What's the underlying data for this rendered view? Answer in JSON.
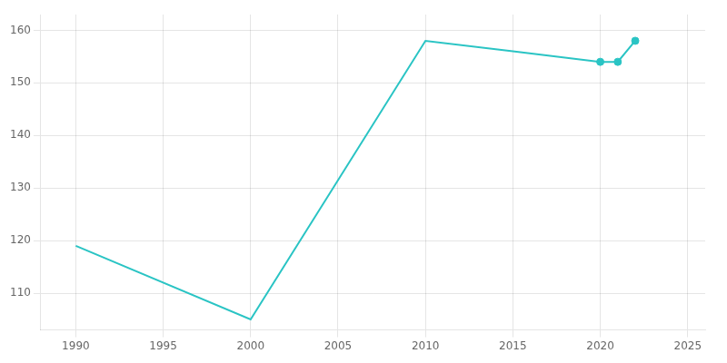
{
  "chart_data": {
    "type": "line",
    "x": [
      1990,
      2000,
      2010,
      2015,
      2020,
      2021,
      2022
    ],
    "series": [
      {
        "type": "line",
        "color": "#2ac4c4",
        "values": [
          119,
          105,
          158,
          156,
          154,
          154,
          158
        ]
      },
      {
        "type": "scatter",
        "color": "#2ac4c4",
        "marker": "circle",
        "x": [
          2020,
          2021,
          2022
        ],
        "values": [
          154,
          154,
          158
        ]
      }
    ],
    "xlim": [
      1988,
      2026
    ],
    "ylim": [
      103,
      163
    ],
    "xticks": [
      1990,
      1995,
      2000,
      2005,
      2010,
      2015,
      2020,
      2025
    ],
    "yticks": [
      110,
      120,
      130,
      140,
      150,
      160
    ],
    "grid": true
  }
}
